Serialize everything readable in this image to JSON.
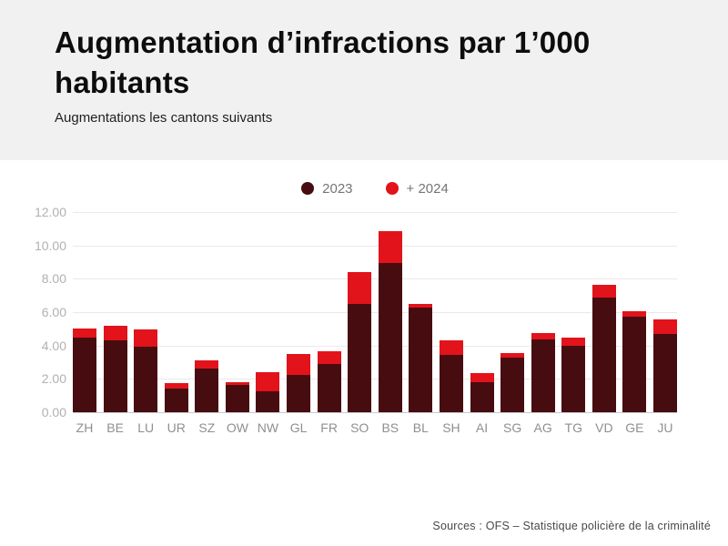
{
  "page": {
    "source": "Sources : OFS – Statistique policière de la criminalité",
    "background": "#ffffff",
    "header_background": "#f1f1f1"
  },
  "chart_data": {
    "type": "bar",
    "stacked": true,
    "title": "Augmentation d’infractions par 1’000 habitants",
    "subtitle": "Augmentations les cantons suivants",
    "categories": [
      "ZH",
      "BE",
      "LU",
      "UR",
      "SZ",
      "OW",
      "NW",
      "GL",
      "FR",
      "SO",
      "BS",
      "BL",
      "SH",
      "AI",
      "SG",
      "AG",
      "TG",
      "VD",
      "GE",
      "JU"
    ],
    "series": [
      {
        "name": "2023",
        "color": "#470c10",
        "values": [
          4.5,
          4.3,
          3.95,
          1.4,
          2.6,
          1.65,
          1.25,
          2.25,
          2.9,
          6.5,
          8.95,
          6.25,
          3.45,
          1.8,
          3.25,
          4.35,
          4.0,
          6.9,
          5.75,
          4.7
        ]
      },
      {
        "name": "+ 2024",
        "color": "#e2131b",
        "values": [
          0.5,
          0.9,
          1.0,
          0.35,
          0.5,
          0.15,
          1.15,
          1.25,
          0.75,
          1.9,
          1.9,
          0.25,
          0.85,
          0.55,
          0.3,
          0.4,
          0.5,
          0.75,
          0.3,
          0.85
        ]
      }
    ],
    "totals": [
      5.0,
      5.2,
      4.95,
      1.75,
      3.1,
      1.8,
      2.4,
      3.5,
      3.65,
      8.4,
      10.85,
      6.5,
      4.3,
      2.35,
      3.55,
      4.75,
      4.5,
      7.65,
      6.05,
      5.55
    ],
    "xlabel": "",
    "ylabel": "",
    "ylim": [
      0,
      12
    ],
    "ytick_step": 2,
    "yticks": [
      "12.00",
      "10.00",
      "8.00",
      "6.00",
      "4.00",
      "2.00",
      "0.00"
    ],
    "grid": true,
    "legend_position": "top-center"
  }
}
